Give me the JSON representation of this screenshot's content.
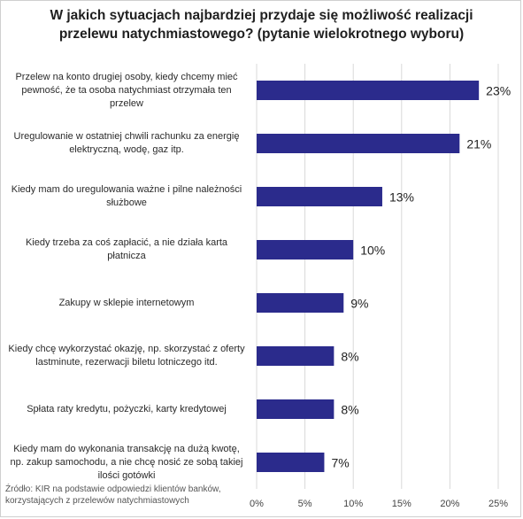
{
  "title": {
    "line1": "W jakich sytuacjach najbardziej przydaje się możliwość realizacji",
    "line2": "przelewu natychmiastowego? (pytanie wielokrotnego wyboru)"
  },
  "source": {
    "line1": "Źródło: KIR na podstawie odpowiedzi klientów banków,",
    "line2": "korzystających z przelewów natychmiastowych"
  },
  "colors": {
    "bar": "#2b2b8c",
    "grid": "#d9d9d9"
  },
  "chart_data": {
    "type": "bar",
    "orientation": "horizontal",
    "title": "W jakich sytuacjach najbardziej przydaje się możliwość realizacji przelewu natychmiastowego? (pytanie wielokrotnego wyboru)",
    "categories": [
      [
        "Przelew na konto drugiej osoby, kiedy chcemy mieć",
        "pewność, że ta osoba natychmiast otrzymała ten",
        "przelew"
      ],
      [
        "Uregulowanie w ostatniej chwili rachunku za energię",
        "elektryczną, wodę, gaz itp."
      ],
      [
        "Kiedy mam do uregulowania ważne i pilne należności",
        "służbowe"
      ],
      [
        "Kiedy trzeba za coś zapłacić, a nie działa karta",
        "płatnicza"
      ],
      [
        "Zakupy w sklepie internetowym"
      ],
      [
        "Kiedy chcę wykorzystać okazję, np. skorzystać z oferty",
        "lastminute, rezerwacji biletu lotniczego itd."
      ],
      [
        "Spłata raty kredytu, pożyczki, karty kredytowej"
      ],
      [
        "Kiedy mam do wykonania  transakcję na dużą kwotę,",
        "np. zakup samochodu, a nie chcę nosić ze sobą takiej",
        "ilości gotówki"
      ]
    ],
    "values": [
      23,
      21,
      13,
      10,
      9,
      8,
      8,
      7
    ],
    "data_labels": [
      "23%",
      "21%",
      "13%",
      "10%",
      "9%",
      "8%",
      "8%",
      "7%"
    ],
    "xlim": [
      0,
      25
    ],
    "x_ticks": [
      0,
      5,
      10,
      15,
      20,
      25
    ],
    "x_tick_labels": [
      "0%",
      "5%",
      "10%",
      "15%",
      "20%",
      "25%"
    ],
    "xlabel": "",
    "ylabel": "",
    "grid": "vertical",
    "legend": "none"
  }
}
